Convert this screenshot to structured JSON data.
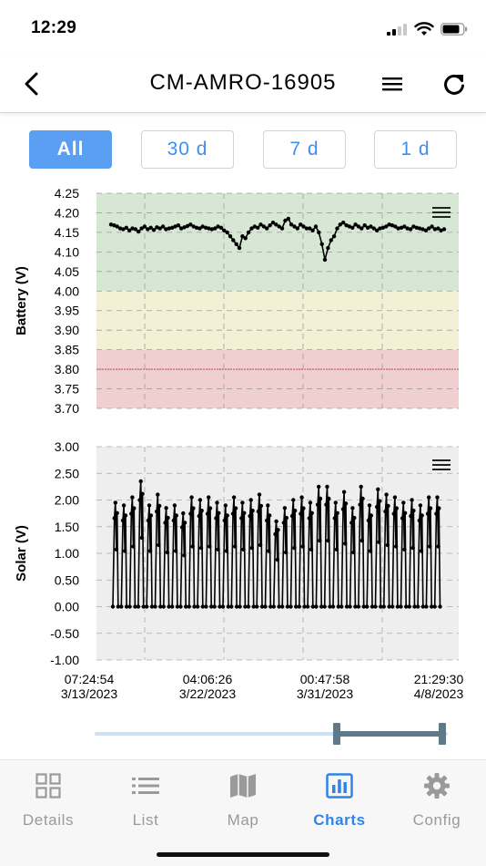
{
  "status": {
    "time": "12:29"
  },
  "nav": {
    "title": "CM-AMRO-16905"
  },
  "range_buttons": [
    {
      "label": "All",
      "active": true
    },
    {
      "label": "30 d",
      "active": false
    },
    {
      "label": "7 d",
      "active": false
    },
    {
      "label": "1 d",
      "active": false
    }
  ],
  "chart_data": [
    {
      "type": "line",
      "ylabel": "Battery (V)",
      "ylim": [
        3.7,
        4.25
      ],
      "yticks": [
        "4.25",
        "4.20",
        "4.15",
        "4.10",
        "4.05",
        "4.00",
        "3.95",
        "3.90",
        "3.85",
        "3.80",
        "3.75",
        "3.70"
      ],
      "bands": [
        {
          "from": 4.0,
          "to": 4.25,
          "color": "#d6e8d4"
        },
        {
          "from": 3.85,
          "to": 4.0,
          "color": "#f3f0d6"
        },
        {
          "from": 3.7,
          "to": 3.85,
          "color": "#efcfcf"
        }
      ],
      "threshold": {
        "value": 3.8,
        "color": "#d04a4a"
      },
      "series": [
        {
          "values": [
            4.17,
            4.168,
            4.165,
            4.16,
            4.158,
            4.162,
            4.155,
            4.16,
            4.158,
            4.152,
            4.16,
            4.165,
            4.158,
            4.162,
            4.156,
            4.163,
            4.16,
            4.165,
            4.158,
            4.16,
            4.162,
            4.165,
            4.168,
            4.16,
            4.163,
            4.166,
            4.17,
            4.165,
            4.162,
            4.16,
            4.165,
            4.162,
            4.16,
            4.158,
            4.16,
            4.165,
            4.162,
            4.155,
            4.15,
            4.14,
            4.13,
            4.12,
            4.11,
            4.14,
            4.135,
            4.15,
            4.16,
            4.165,
            4.162,
            4.17,
            4.165,
            4.16,
            4.168,
            4.175,
            4.17,
            4.165,
            4.16,
            4.18,
            4.185,
            4.17,
            4.165,
            4.16,
            4.17,
            4.165,
            4.16,
            4.16,
            4.155,
            4.165,
            4.15,
            4.12,
            4.08,
            4.11,
            4.13,
            4.14,
            4.16,
            4.17,
            4.175,
            4.168,
            4.165,
            4.162,
            4.17,
            4.165,
            4.16,
            4.168,
            4.162,
            4.165,
            4.16,
            4.155,
            4.16,
            4.162,
            4.165,
            4.17,
            4.168,
            4.165,
            4.16,
            4.162,
            4.165,
            4.16,
            4.158,
            4.165,
            4.162,
            4.16,
            4.158,
            4.155,
            4.16,
            4.165,
            4.158,
            4.16,
            4.155,
            4.158
          ]
        }
      ],
      "grid": true
    },
    {
      "type": "line",
      "ylabel": "Solar (V)",
      "ylim": [
        -1.0,
        3.0
      ],
      "yticks": [
        "3.00",
        "2.50",
        "2.00",
        "1.50",
        "1.00",
        "0.50",
        "0.00",
        "-0.50",
        "-1.00"
      ],
      "xticks": [
        {
          "time": "07:24:54",
          "date": "3/13/2023"
        },
        {
          "time": "04:06:26",
          "date": "3/22/2023"
        },
        {
          "time": "00:47:58",
          "date": "3/31/2023"
        },
        {
          "time": "21:29:30",
          "date": "4/8/2023"
        }
      ],
      "series": [
        {
          "peaks": [
            1.95,
            1.9,
            2.05,
            2.35,
            1.9,
            2.1,
            1.85,
            1.9,
            1.75,
            2.05,
            2.0,
            2.05,
            1.95,
            1.9,
            2.05,
            1.95,
            2.0,
            2.1,
            1.9,
            1.6,
            1.85,
            2.0,
            2.05,
            1.95,
            2.25,
            2.25,
            1.95,
            2.15,
            1.85,
            2.25,
            1.9,
            2.2,
            2.1,
            2.05,
            1.95,
            2.0,
            1.9,
            2.05,
            2.05
          ]
        }
      ],
      "grid": true
    }
  ],
  "tabs": [
    {
      "label": "Details",
      "icon": "grid-icon",
      "active": false
    },
    {
      "label": "List",
      "icon": "list-icon",
      "active": false
    },
    {
      "label": "Map",
      "icon": "map-icon",
      "active": false
    },
    {
      "label": "Charts",
      "icon": "chart-icon",
      "active": true
    },
    {
      "label": "Config",
      "icon": "gear-icon",
      "active": false
    }
  ],
  "colors": {
    "accent": "#3f8ff0",
    "active_button": "#5b9ff2",
    "tab_active": "#2f84e8",
    "slider_handle": "#5e7a88",
    "slider_track": "#cfe0f5"
  }
}
